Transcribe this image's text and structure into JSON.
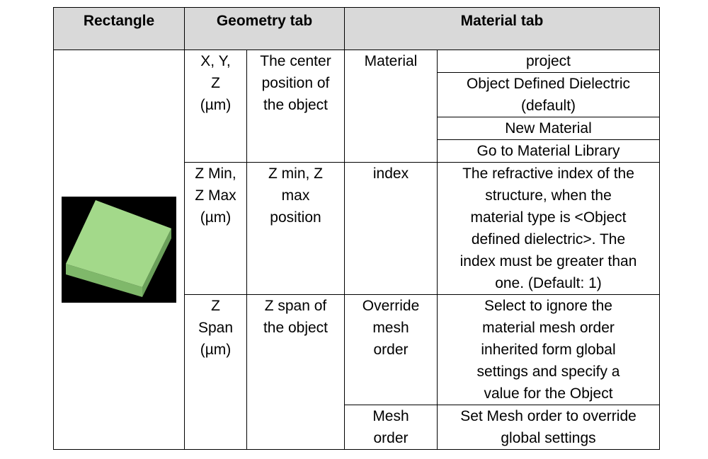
{
  "headers": {
    "col1": "Rectangle",
    "col2": "Geometry tab",
    "col3": "Material tab"
  },
  "rows": [
    {
      "param": "X, Y,\nZ\n(µm)",
      "desc": "The center\nposition of\nthe object",
      "mat_label": "Material",
      "mat_values": [
        "project",
        "Object Defined Dielectric\n(default)",
        "New Material",
        "Go to Material Library"
      ]
    },
    {
      "param": "Z Min,\nZ Max\n(µm)",
      "desc": "Z min, Z\nmax\nposition",
      "mat_label": "index",
      "mat_value": "The refractive index of the\nstructure, when the\nmaterial type is <Object\ndefined dielectric>. The\nindex must be greater than\none. (Default: 1)"
    },
    {
      "param": "Z\nSpan\n(µm)",
      "desc": "Z span of\nthe object",
      "mat_items": [
        {
          "label": "Override\nmesh\norder",
          "value": "Select to ignore the\nmaterial mesh order\ninherited form global\nsettings and specify a\nvalue for the Object"
        },
        {
          "label": "Mesh\norder",
          "value": "Set Mesh order to override\nglobal settings"
        }
      ]
    }
  ],
  "image": {
    "icon": "rectangle-3d-icon",
    "colors": {
      "background": "#000000",
      "top_face": "#a3d98a",
      "side_face_left": "#7fb86a",
      "side_face_right": "#6aa05a"
    }
  }
}
